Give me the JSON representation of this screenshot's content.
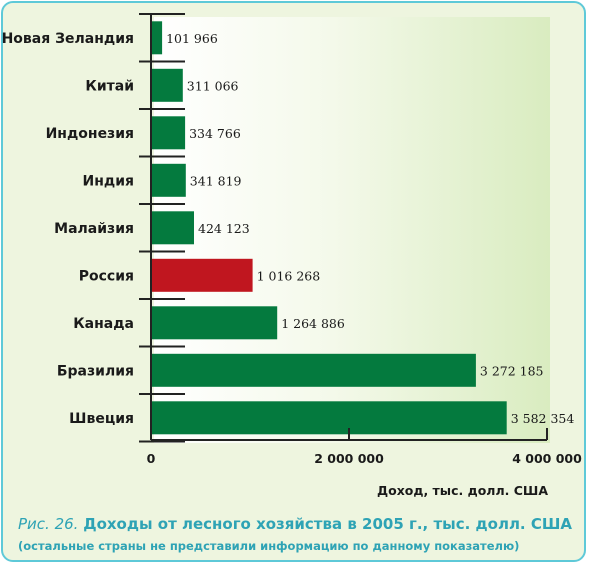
{
  "chart_data": {
    "type": "bar",
    "orientation": "horizontal",
    "categories": [
      "Новая Зеландия",
      "Китай",
      "Индонезия",
      "Индия",
      "Малайзия",
      "Россия",
      "Канада",
      "Бразилия",
      "Швеция"
    ],
    "values": [
      101966,
      311066,
      334766,
      341819,
      424123,
      1016268,
      1264886,
      3272185,
      3582354
    ],
    "value_labels": [
      "101 966",
      "311 066",
      "334 766",
      "341 819",
      "424 123",
      "1 016 268",
      "1 264 886",
      "3 272 185",
      "3 582 354"
    ],
    "highlight_category": "Россия",
    "colors": {
      "bar": "#047a3e",
      "highlight": "#c0161f"
    },
    "xlim": [
      0,
      4000000
    ],
    "xticks": [
      0,
      2000000,
      4000000
    ],
    "xtick_labels": [
      "0",
      "2 000 000",
      "4 000 000"
    ],
    "xlabel": "Доход, тыс. долл. США",
    "grid": false
  },
  "caption": {
    "figure_label": "Рис. 26.",
    "title": "Доходы от лесного хозяйства в 2005 г., тыс. долл. США",
    "note": "(остальные страны не представили информацию по данному показателю)"
  },
  "colors": {
    "frame_border": "#5ec9d8",
    "caption": "#2ea3b5",
    "panel": "#eef5df"
  }
}
